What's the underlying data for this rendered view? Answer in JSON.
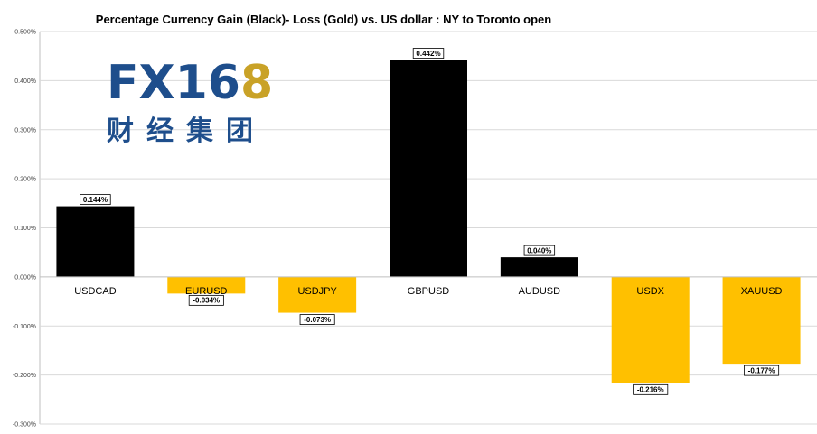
{
  "chart_data": {
    "type": "bar",
    "title": "Percentage Currency  Gain (Black)- Loss (Gold)  vs. US dollar :  NY  to Toronto  open",
    "xlabel": "",
    "ylabel": "",
    "ylim": [
      -0.003,
      0.005
    ],
    "yticks": [
      0.005,
      0.004,
      0.003,
      0.002,
      0.001,
      0.0,
      -0.001,
      -0.002,
      -0.003
    ],
    "ytick_labels": [
      "0.500%",
      "0.400%",
      "0.300%",
      "0.200%",
      "0.100%",
      "0.000%",
      "-0.100%",
      "-0.200%",
      "-0.300%"
    ],
    "grid": true,
    "legend": "none",
    "categories": [
      "USDCAD",
      "EURUSD",
      "USDJPY",
      "GBPUSD",
      "AUDUSD",
      "USDX",
      "XAUUSD"
    ],
    "values": [
      0.00144,
      -0.00034,
      -0.00073,
      0.00442,
      0.0004,
      -0.00216,
      -0.00177
    ],
    "data_labels": [
      "0.144%",
      "-0.034%",
      "-0.073%",
      "0.442%",
      "0.040%",
      "-0.216%",
      "-0.177%"
    ],
    "colors": {
      "gain": "#000000",
      "loss": "#FFC000",
      "grid": "#D9D9D9",
      "axis": "#BFBFBF"
    }
  },
  "logo": {
    "text_fx": "FX16",
    "text_8": "8",
    "text_cn": "财经集团",
    "color_blue": "#1E4E8C",
    "color_gold": "#C9A227"
  }
}
